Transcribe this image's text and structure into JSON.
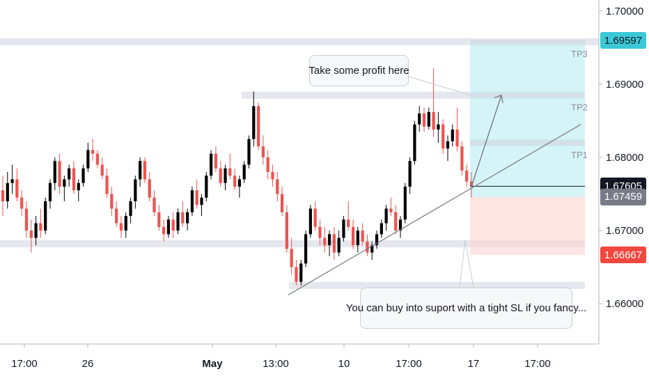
{
  "chart_data": {
    "type": "candlestick",
    "instrument_axis": "price",
    "ylim": [
      1.6545,
      1.7015
    ],
    "y_ticks": [
      "1.70000",
      "1.69000",
      "1.68000",
      "1.67000",
      "1.66000"
    ],
    "x_ticks": [
      "17:00",
      "26",
      "May",
      "13:00",
      "10",
      "17:00",
      "17",
      "17:00"
    ],
    "grid": false,
    "colors": {
      "up": "#000000",
      "down": "#ef5350"
    },
    "candles": [
      [
        1.6755,
        1.6775,
        1.672,
        1.674
      ],
      [
        1.674,
        1.678,
        1.673,
        1.6765
      ],
      [
        1.6765,
        1.679,
        1.675,
        1.677
      ],
      [
        1.677,
        1.6785,
        1.674,
        1.6745
      ],
      [
        1.6745,
        1.6755,
        1.672,
        1.673
      ],
      [
        1.673,
        1.674,
        1.669,
        1.67
      ],
      [
        1.67,
        1.6715,
        1.667,
        1.669
      ],
      [
        1.669,
        1.672,
        1.668,
        1.671
      ],
      [
        1.671,
        1.673,
        1.669,
        1.67
      ],
      [
        1.67,
        1.6745,
        1.6695,
        1.674
      ],
      [
        1.674,
        1.677,
        1.673,
        1.6765
      ],
      [
        1.6765,
        1.68,
        1.6755,
        1.6795
      ],
      [
        1.6795,
        1.6805,
        1.675,
        1.676
      ],
      [
        1.676,
        1.6775,
        1.674,
        1.677
      ],
      [
        1.677,
        1.679,
        1.676,
        1.6785
      ],
      [
        1.6785,
        1.6795,
        1.675,
        1.6755
      ],
      [
        1.6755,
        1.677,
        1.674,
        1.6765
      ],
      [
        1.6765,
        1.679,
        1.676,
        1.6785
      ],
      [
        1.6785,
        1.682,
        1.678,
        1.681
      ],
      [
        1.681,
        1.6825,
        1.6795,
        1.6805
      ],
      [
        1.6805,
        1.681,
        1.6785,
        1.679
      ],
      [
        1.679,
        1.68,
        1.677,
        1.6775
      ],
      [
        1.6775,
        1.6785,
        1.6745,
        1.675
      ],
      [
        1.675,
        1.676,
        1.672,
        1.673
      ],
      [
        1.673,
        1.674,
        1.6705,
        1.671
      ],
      [
        1.671,
        1.672,
        1.669,
        1.67
      ],
      [
        1.67,
        1.6725,
        1.669,
        1.672
      ],
      [
        1.672,
        1.6745,
        1.671,
        1.674
      ],
      [
        1.674,
        1.6775,
        1.673,
        1.677
      ],
      [
        1.677,
        1.68,
        1.676,
        1.6795
      ],
      [
        1.6795,
        1.68,
        1.6765,
        1.677
      ],
      [
        1.677,
        1.678,
        1.674,
        1.6745
      ],
      [
        1.6745,
        1.6755,
        1.672,
        1.6725
      ],
      [
        1.6725,
        1.6735,
        1.67,
        1.6705
      ],
      [
        1.6705,
        1.6715,
        1.6685,
        1.6695
      ],
      [
        1.6695,
        1.672,
        1.669,
        1.6715
      ],
      [
        1.6715,
        1.6725,
        1.669,
        1.67
      ],
      [
        1.67,
        1.673,
        1.6695,
        1.6725
      ],
      [
        1.6725,
        1.674,
        1.6705,
        1.671
      ],
      [
        1.671,
        1.673,
        1.67,
        1.6725
      ],
      [
        1.6725,
        1.676,
        1.672,
        1.6755
      ],
      [
        1.6755,
        1.677,
        1.673,
        1.6735
      ],
      [
        1.6735,
        1.675,
        1.672,
        1.6745
      ],
      [
        1.6745,
        1.678,
        1.674,
        1.6775
      ],
      [
        1.6775,
        1.681,
        1.677,
        1.6805
      ],
      [
        1.6805,
        1.6815,
        1.678,
        1.6785
      ],
      [
        1.6785,
        1.6795,
        1.676,
        1.6765
      ],
      [
        1.6765,
        1.679,
        1.6755,
        1.6785
      ],
      [
        1.6785,
        1.6805,
        1.677,
        1.6775
      ],
      [
        1.6775,
        1.6785,
        1.6755,
        1.676
      ],
      [
        1.676,
        1.6775,
        1.6745,
        1.677
      ],
      [
        1.677,
        1.6795,
        1.6765,
        1.679
      ],
      [
        1.679,
        1.683,
        1.6785,
        1.6825
      ],
      [
        1.6825,
        1.689,
        1.6815,
        1.687
      ],
      [
        1.687,
        1.6875,
        1.681,
        1.6815
      ],
      [
        1.6815,
        1.683,
        1.679,
        1.68
      ],
      [
        1.68,
        1.681,
        1.677,
        1.678
      ],
      [
        1.678,
        1.679,
        1.676,
        1.677
      ],
      [
        1.677,
        1.678,
        1.674,
        1.675
      ],
      [
        1.675,
        1.676,
        1.672,
        1.6725
      ],
      [
        1.6725,
        1.6735,
        1.667,
        1.6675
      ],
      [
        1.6675,
        1.669,
        1.664,
        1.665
      ],
      [
        1.665,
        1.666,
        1.6625,
        1.663
      ],
      [
        1.663,
        1.666,
        1.6625,
        1.6655
      ],
      [
        1.6655,
        1.67,
        1.665,
        1.6695
      ],
      [
        1.6695,
        1.6735,
        1.669,
        1.673
      ],
      [
        1.673,
        1.674,
        1.67,
        1.6705
      ],
      [
        1.6705,
        1.6715,
        1.668,
        1.669
      ],
      [
        1.669,
        1.6705,
        1.667,
        1.668
      ],
      [
        1.668,
        1.67,
        1.6665,
        1.6695
      ],
      [
        1.6695,
        1.6705,
        1.666,
        1.667
      ],
      [
        1.667,
        1.67,
        1.6665,
        1.669
      ],
      [
        1.669,
        1.672,
        1.6685,
        1.6715
      ],
      [
        1.6715,
        1.674,
        1.67,
        1.6705
      ],
      [
        1.6705,
        1.6715,
        1.6675,
        1.668
      ],
      [
        1.668,
        1.6705,
        1.667,
        1.67
      ],
      [
        1.67,
        1.671,
        1.668,
        1.6685
      ],
      [
        1.6685,
        1.6695,
        1.6665,
        1.667
      ],
      [
        1.667,
        1.6685,
        1.666,
        1.668
      ],
      [
        1.668,
        1.67,
        1.6675,
        1.6695
      ],
      [
        1.6695,
        1.6715,
        1.669,
        1.671
      ],
      [
        1.671,
        1.6735,
        1.67,
        1.673
      ],
      [
        1.673,
        1.6745,
        1.672,
        1.6725
      ],
      [
        1.6725,
        1.6735,
        1.6695,
        1.67
      ],
      [
        1.67,
        1.672,
        1.669,
        1.6715
      ],
      [
        1.6715,
        1.6765,
        1.671,
        1.676
      ],
      [
        1.676,
        1.68,
        1.675,
        1.6795
      ],
      [
        1.6795,
        1.685,
        1.679,
        1.6845
      ],
      [
        1.6845,
        1.687,
        1.6835,
        1.686
      ],
      [
        1.686,
        1.6868,
        1.6835,
        1.6842
      ],
      [
        1.6842,
        1.6868,
        1.6838,
        1.6862
      ],
      [
        1.6862,
        1.6922,
        1.6828,
        1.6838
      ],
      [
        1.6838,
        1.6862,
        1.682,
        1.6845
      ],
      [
        1.6845,
        1.6852,
        1.6805,
        1.6812
      ],
      [
        1.6812,
        1.683,
        1.6795,
        1.6822
      ],
      [
        1.6822,
        1.6845,
        1.6815,
        1.6838
      ],
      [
        1.6838,
        1.6868,
        1.6808,
        1.6815
      ],
      [
        1.6815,
        1.6822,
        1.6775,
        1.6782
      ],
      [
        1.6782,
        1.679,
        1.676,
        1.6767
      ],
      [
        1.6767,
        1.678,
        1.6745,
        1.676
      ]
    ],
    "levels": [
      {
        "label": "",
        "value": 1.6958
      },
      {
        "label": "",
        "value": 1.6885
      },
      {
        "label": "",
        "value": 1.682
      },
      {
        "label": "",
        "value": 1.6682
      },
      {
        "label": "",
        "value": 1.6625
      }
    ],
    "position": {
      "entry": 1.67459,
      "stop": 1.66667,
      "target": 1.69597,
      "targets": [
        {
          "label": "TP1",
          "value": 1.682
        },
        {
          "label": "TP2",
          "value": 1.6885
        },
        {
          "label": "TP3",
          "value": 1.6958
        }
      ]
    },
    "trendline": [
      {
        "x": 0.444,
        "y": 1.6612
      },
      {
        "x": 0.895,
        "y": 1.6845
      }
    ],
    "price_tags": [
      {
        "value": 1.69597,
        "label": "1.69597",
        "color": "#3cc8d6"
      },
      {
        "value": 1.67605,
        "label": "1.67605",
        "color": "#131722"
      },
      {
        "value": 1.67459,
        "label": "1.67459",
        "color": "#787b86"
      },
      {
        "value": 1.66667,
        "label": "1.66667",
        "color": "#f0483e"
      }
    ]
  },
  "annotations": {
    "profit_note": "Take some profit here",
    "support_note": "You can buy into suport with a tight SL if you fancy..."
  }
}
